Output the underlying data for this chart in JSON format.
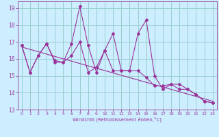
{
  "xlabel": "Windchill (Refroidissement éolien,°C)",
  "background_color": "#cceeff",
  "grid_color": "#99cccc",
  "line_color": "#993399",
  "xlim": [
    -0.5,
    23.5
  ],
  "ylim": [
    13,
    19.4
  ],
  "xticks": [
    0,
    1,
    2,
    3,
    4,
    5,
    6,
    7,
    8,
    9,
    10,
    11,
    12,
    13,
    14,
    15,
    16,
    17,
    18,
    19,
    20,
    21,
    22,
    23
  ],
  "yticks": [
    13,
    14,
    15,
    16,
    17,
    18,
    19
  ],
  "series1_y": [
    16.8,
    15.2,
    16.2,
    16.9,
    15.8,
    15.8,
    16.9,
    19.1,
    16.8,
    15.2,
    16.5,
    17.5,
    15.3,
    15.3,
    17.5,
    18.3,
    15.0,
    14.2,
    14.5,
    14.5,
    14.2,
    13.9,
    13.5,
    13.4
  ],
  "series2_y": [
    16.8,
    15.2,
    16.2,
    16.9,
    15.9,
    15.8,
    16.2,
    17.0,
    15.2,
    15.5,
    16.5,
    15.3,
    15.3,
    15.3,
    15.3,
    14.9,
    14.4,
    14.4,
    14.5,
    14.2,
    14.2,
    13.9,
    13.5,
    13.4
  ],
  "trend_x": [
    0,
    23
  ],
  "trend_y": [
    16.7,
    13.5
  ]
}
